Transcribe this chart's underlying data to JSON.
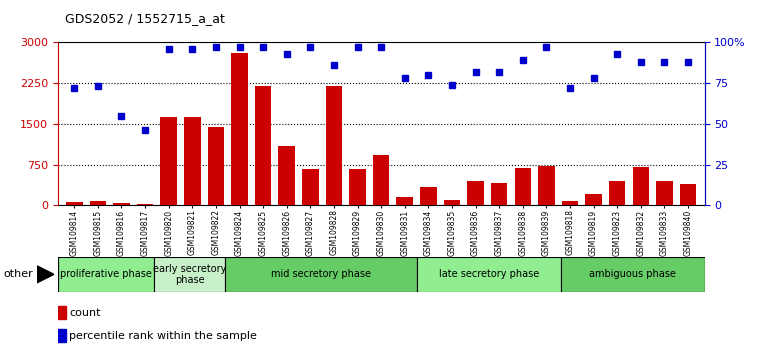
{
  "title": "GDS2052 / 1552715_a_at",
  "samples": [
    "GSM109814",
    "GSM109815",
    "GSM109816",
    "GSM109817",
    "GSM109820",
    "GSM109821",
    "GSM109822",
    "GSM109824",
    "GSM109825",
    "GSM109826",
    "GSM109827",
    "GSM109828",
    "GSM109829",
    "GSM109830",
    "GSM109831",
    "GSM109834",
    "GSM109835",
    "GSM109836",
    "GSM109837",
    "GSM109838",
    "GSM109839",
    "GSM109818",
    "GSM109819",
    "GSM109823",
    "GSM109832",
    "GSM109833",
    "GSM109840"
  ],
  "counts": [
    60,
    80,
    50,
    30,
    1620,
    1620,
    1450,
    2800,
    2190,
    1100,
    660,
    2190,
    670,
    920,
    155,
    330,
    100,
    440,
    420,
    680,
    720,
    80,
    200,
    440,
    700,
    450,
    390
  ],
  "percentiles": [
    72,
    73,
    55,
    46,
    96,
    96,
    97,
    97,
    97,
    93,
    97,
    86,
    97,
    97,
    78,
    80,
    74,
    82,
    82,
    89,
    97,
    72,
    78,
    93,
    88,
    88,
    88
  ],
  "phases": [
    {
      "label": "proliferative phase",
      "start": 0,
      "end": 4,
      "color": "#90EE90"
    },
    {
      "label": "early secretory\nphase",
      "start": 4,
      "end": 7,
      "color": "#c8f0c8"
    },
    {
      "label": "mid secretory phase",
      "start": 7,
      "end": 15,
      "color": "#66cc66"
    },
    {
      "label": "late secretory phase",
      "start": 15,
      "end": 21,
      "color": "#90EE90"
    },
    {
      "label": "ambiguous phase",
      "start": 21,
      "end": 27,
      "color": "#66cc66"
    }
  ],
  "bar_color": "#cc0000",
  "dot_color": "#0000cc",
  "ylim_left": [
    0,
    3000
  ],
  "ylim_right": [
    0,
    100
  ],
  "yticks_left": [
    0,
    750,
    1500,
    2250,
    3000
  ],
  "ytick_labels_left": [
    "0",
    "750",
    "1500",
    "2250",
    "3000"
  ],
  "yticks_right": [
    0,
    25,
    50,
    75,
    100
  ],
  "ytick_labels_right": [
    "0",
    "25",
    "50",
    "75",
    "100%"
  ],
  "background_color": "#ffffff",
  "other_label": "other"
}
